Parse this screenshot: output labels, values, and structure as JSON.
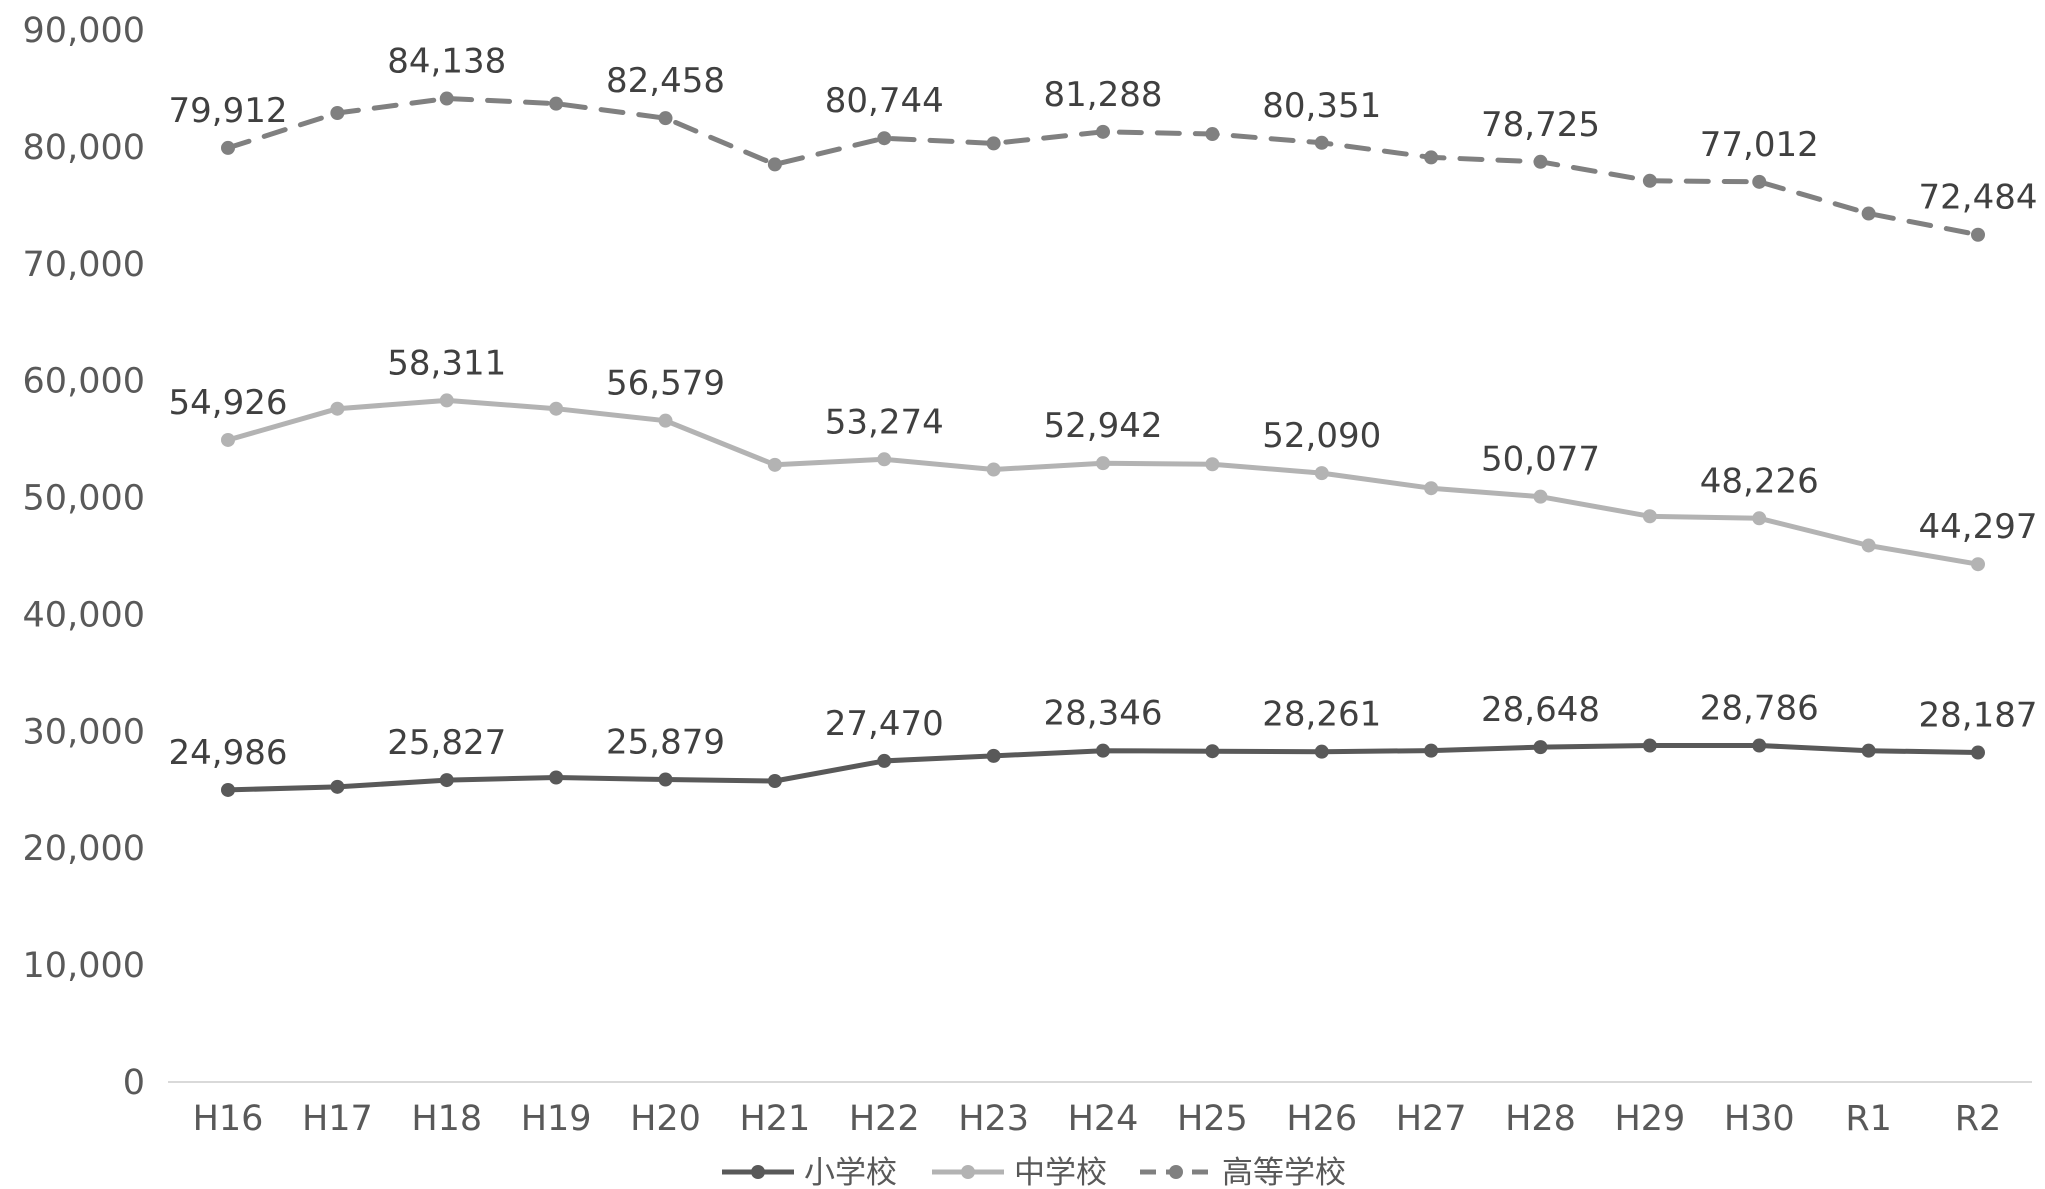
{
  "chart_data": {
    "type": "line",
    "categories": [
      "H16",
      "H17",
      "H18",
      "H19",
      "H20",
      "H21",
      "H22",
      "H23",
      "H24",
      "H25",
      "H26",
      "H27",
      "H28",
      "H29",
      "H30",
      "R1",
      "R2"
    ],
    "ylim": [
      0,
      90000
    ],
    "yticks": [
      0,
      10000,
      20000,
      30000,
      40000,
      50000,
      60000,
      70000,
      80000,
      90000
    ],
    "ytick_labels": [
      "0",
      "10,000",
      "20,000",
      "30,000",
      "40,000",
      "50,000",
      "60,000",
      "70,000",
      "80,000",
      "90,000"
    ],
    "grid": false,
    "legend_position": "bottom",
    "series": [
      {
        "name": "小学校",
        "color": "#595959",
        "line_style": "solid",
        "values": [
          24986,
          25250,
          25827,
          26050,
          25879,
          25750,
          27470,
          27900,
          28346,
          28300,
          28261,
          28350,
          28648,
          28786,
          28786,
          28346,
          28187
        ],
        "labels": [
          "24,986",
          "",
          "25,827",
          "",
          "25,879",
          "",
          "27,470",
          "",
          "28,346",
          "",
          "28,261",
          "",
          "28,648",
          "",
          "28,786",
          "",
          "28,187"
        ]
      },
      {
        "name": "中学校",
        "color": "#b3b3b3",
        "line_style": "solid",
        "values": [
          54926,
          57600,
          58311,
          57600,
          56579,
          52800,
          53274,
          52400,
          52942,
          52850,
          52090,
          50800,
          50077,
          48400,
          48226,
          45900,
          44297
        ],
        "labels": [
          "54,926",
          "",
          "58,311",
          "",
          "56,579",
          "",
          "53,274",
          "",
          "52,942",
          "",
          "52,090",
          "",
          "50,077",
          "",
          "48,226",
          "",
          "44,297"
        ]
      },
      {
        "name": "高等学校",
        "color": "#808080",
        "line_style": "dashed",
        "values": [
          79912,
          82900,
          84138,
          83700,
          82458,
          78500,
          80744,
          80300,
          81288,
          81100,
          80351,
          79100,
          78725,
          77100,
          77012,
          74300,
          72484
        ],
        "labels": [
          "79,912",
          "",
          "84,138",
          "",
          "82,458",
          "",
          "80,744",
          "",
          "81,288",
          "",
          "80,351",
          "",
          "78,725",
          "",
          "77,012",
          "",
          "72,484"
        ]
      }
    ]
  }
}
